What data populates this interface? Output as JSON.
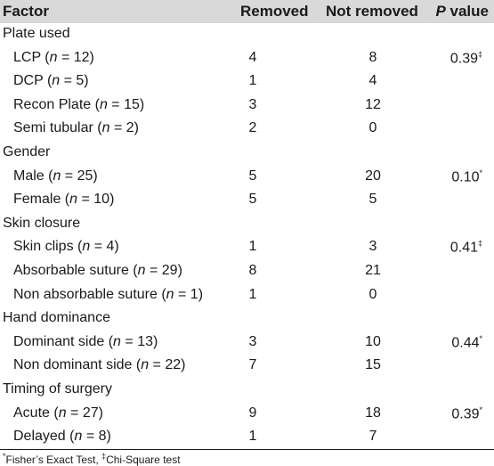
{
  "header": [
    "Factor",
    "Removed",
    "Not removed",
    "P value"
  ],
  "rows": [
    {
      "type": "group",
      "label": "Plate used"
    },
    {
      "type": "item",
      "name": "LCP",
      "n": "12",
      "removed": "4",
      "not_removed": "8",
      "p": "0.39‡"
    },
    {
      "type": "item",
      "name": "DCP",
      "n": "5",
      "removed": "1",
      "not_removed": "4",
      "p": ""
    },
    {
      "type": "item",
      "name": "Recon Plate",
      "n": "15",
      "removed": "3",
      "not_removed": "12",
      "p": ""
    },
    {
      "type": "item",
      "name": "Semi tubular",
      "n": "2",
      "removed": "2",
      "not_removed": "0",
      "p": ""
    },
    {
      "type": "group",
      "label": "Gender"
    },
    {
      "type": "item",
      "name": "Male",
      "n": "25",
      "removed": "5",
      "not_removed": "20",
      "p": "0.10*"
    },
    {
      "type": "item",
      "name": "Female",
      "n": "10",
      "removed": "5",
      "not_removed": "5",
      "p": ""
    },
    {
      "type": "group",
      "label": "Skin closure"
    },
    {
      "type": "item",
      "name": "Skin clips",
      "n": "4",
      "removed": "1",
      "not_removed": "3",
      "p": "0.41‡"
    },
    {
      "type": "item",
      "name": "Absorbable suture",
      "n": "29",
      "removed": "8",
      "not_removed": "21",
      "p": ""
    },
    {
      "type": "item",
      "name": "Non absorbable suture",
      "n": "1",
      "removed": "1",
      "not_removed": "0",
      "p": ""
    },
    {
      "type": "group",
      "label": "Hand dominance"
    },
    {
      "type": "item",
      "name": "Dominant side",
      "n": "13",
      "removed": "3",
      "not_removed": "10",
      "p": "0.44*"
    },
    {
      "type": "item",
      "name": "Non dominant side",
      "n": "22",
      "removed": "7",
      "not_removed": "15",
      "p": ""
    },
    {
      "type": "group",
      "label": "Timing of surgery"
    },
    {
      "type": "item",
      "name": "Acute",
      "n": "27",
      "removed": "9",
      "not_removed": "18",
      "p": "0.39*"
    },
    {
      "type": "item",
      "name": "Delayed",
      "n": "8",
      "removed": "1",
      "not_removed": "7",
      "p": ""
    }
  ],
  "footnote": "*Fisher’s Exact Test, ‡Chi-Square test"
}
